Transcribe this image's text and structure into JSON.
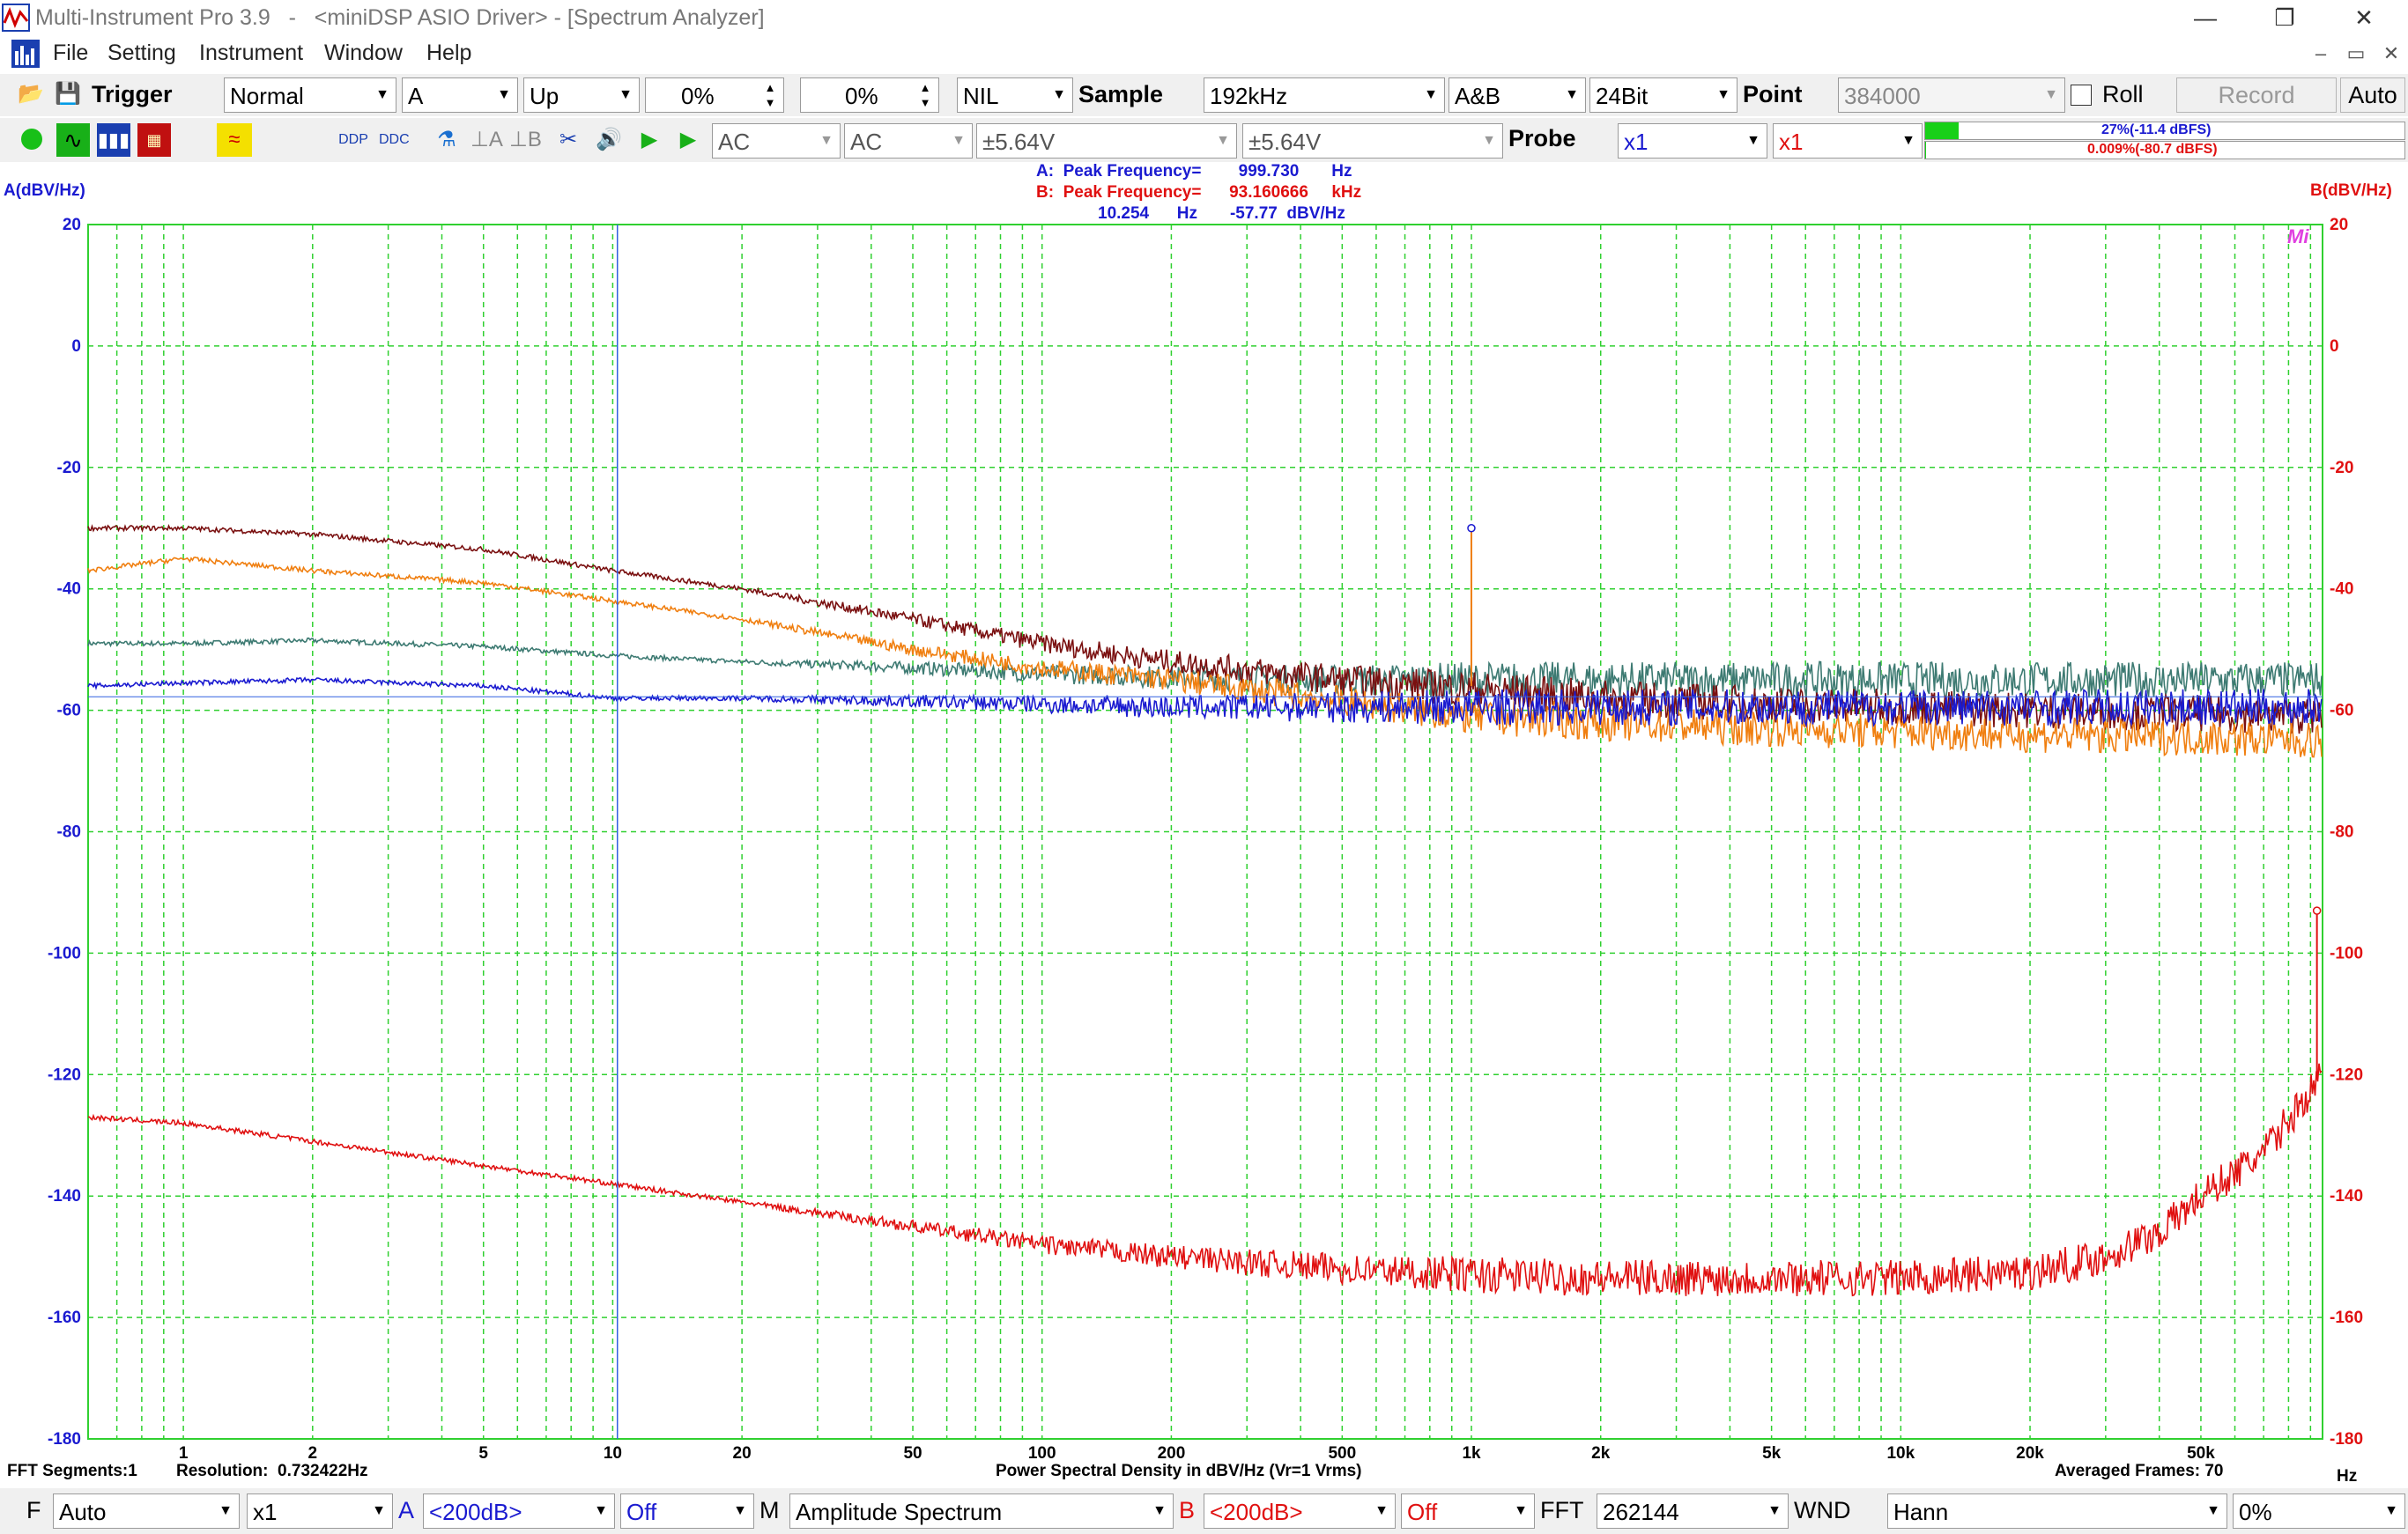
{
  "window": {
    "title": "Multi-Instrument Pro 3.9   -   <miniDSP ASIO Driver> - [Spectrum Analyzer]",
    "controls": [
      "—",
      "❐",
      "✕"
    ]
  },
  "menu": {
    "items": [
      "File",
      "Setting",
      "Instrument",
      "Window",
      "Help"
    ],
    "mdi_controls": [
      "–",
      "▭",
      "✕"
    ]
  },
  "toolbar1": {
    "trigger_label": "Trigger",
    "trigger_mode": "Normal",
    "trigger_source": "A",
    "trigger_edge": "Up",
    "trigger_level": "0%",
    "trigger_delay": "0%",
    "nil": "NIL",
    "sample_label": "Sample",
    "sample_rate": "192kHz",
    "channels": "A&B",
    "bits": "24Bit",
    "point_label": "Point",
    "points": "384000",
    "roll_label": "Roll",
    "record_label": "Record",
    "auto_label": "Auto"
  },
  "toolbar2": {
    "coupling_a": "AC",
    "coupling_b": "AC",
    "range_a": "±5.64V",
    "range_b": "±5.64V",
    "probe_label": "Probe",
    "probe_a": "x1",
    "probe_b": "x1",
    "level_a": "27%(-11.4 dBFS)",
    "level_b": "0.009%(-80.7 dBFS)",
    "level_a_fraction": 0.27,
    "level_b_fraction": 0.0001,
    "color_a": "#1a1ad0",
    "color_b": "#e01010"
  },
  "plot": {
    "left_unit": "A(dBV/Hz)",
    "right_unit": "B(dBV/Hz)",
    "peak_a": "A:  Peak Frequency=        999.730       Hz",
    "peak_b": "B:  Peak Frequency=      93.160666     kHz",
    "cursor": "10.254      Hz       -57.77  dBV/Hz",
    "logo": "Mi",
    "x_unit": "Hz",
    "x_title": "Power Spectral Density in dBV/Hz (Vr=1 Vrms)",
    "fft_segments": "FFT Segments:1",
    "resolution": "Resolution:  0.732422Hz",
    "averaged": "Averaged Frames: 70"
  },
  "chart_data": {
    "type": "line",
    "xscale": "log",
    "xlim": [
      0.6,
      96000
    ],
    "ylim": [
      -180,
      20
    ],
    "yticks": [
      20,
      0,
      -20,
      -40,
      -60,
      -80,
      -100,
      -120,
      -140,
      -160,
      -180
    ],
    "xticks": [
      1,
      2,
      5,
      10,
      20,
      50,
      100,
      200,
      500,
      1000,
      2000,
      5000,
      10000,
      20000,
      50000
    ],
    "xticklabels": [
      "1",
      "2",
      "5",
      "10",
      "20",
      "50",
      "100",
      "200",
      "500",
      "1k",
      "2k",
      "5k",
      "10k",
      "20k",
      "50k"
    ],
    "grid": true,
    "cursor_x": 10.254,
    "series": [
      {
        "color": "#7a1010",
        "x": [
          0.6,
          1,
          2,
          5,
          10,
          20,
          50,
          100,
          200,
          500,
          1000,
          2000,
          5000,
          10000,
          20000,
          50000,
          96000
        ],
        "y": [
          -30,
          -30,
          -31,
          -33.5,
          -37,
          -40,
          -45,
          -49,
          -52,
          -55,
          -56.5,
          -58,
          -59,
          -59.5,
          -60,
          -60.5,
          -61
        ]
      },
      {
        "color": "#f07f10",
        "x": [
          0.6,
          1,
          2,
          5,
          10,
          20,
          50,
          100,
          200,
          500,
          1000,
          2000,
          5000,
          10000,
          20000,
          50000,
          96000
        ],
        "y": [
          -37,
          -35,
          -37,
          -39,
          -42,
          -45,
          -50,
          -53,
          -55,
          -58.5,
          -61,
          -62,
          -63,
          -63.5,
          -64,
          -64.5,
          -65
        ]
      },
      {
        "color": "#3d7a72",
        "x": [
          0.6,
          1,
          2,
          5,
          10,
          20,
          50,
          100,
          200,
          500,
          1000,
          2000,
          5000,
          10000,
          20000,
          50000,
          96000
        ],
        "y": [
          -49,
          -49,
          -48.5,
          -49.5,
          -51,
          -52,
          -53,
          -54,
          -54.5,
          -55,
          -55,
          -55,
          -55,
          -55,
          -55,
          -55,
          -55
        ]
      },
      {
        "color": "#1a1ad0",
        "x": [
          0.6,
          1,
          2,
          5,
          10,
          20,
          50,
          100,
          200,
          500,
          1000,
          2000,
          5000,
          10000,
          20000,
          50000,
          96000
        ],
        "y": [
          -56,
          -55.5,
          -55,
          -56,
          -58,
          -58,
          -58.5,
          -59,
          -59.5,
          -59.5,
          -59.5,
          -59.5,
          -59.5,
          -59.5,
          -59.5,
          -59.5,
          -59.5
        ]
      },
      {
        "color": "#e01010",
        "x": [
          0.6,
          1,
          2,
          5,
          10,
          20,
          50,
          100,
          200,
          500,
          1000,
          2000,
          5000,
          10000,
          20000,
          30000,
          40000,
          50000,
          70000,
          96000
        ],
        "y": [
          -127,
          -128,
          -131,
          -135,
          -138,
          -141,
          -145,
          -148,
          -150,
          -152,
          -153,
          -153.5,
          -153.5,
          -153.5,
          -152.5,
          -150,
          -146,
          -140,
          -133,
          -120
        ]
      }
    ],
    "peaks": [
      {
        "color": "#f07f10",
        "x": 999.73,
        "y": -30,
        "base": -56
      },
      {
        "color": "#e01010",
        "x": 93160.666,
        "y": -93,
        "base": -120
      }
    ]
  },
  "bottom": {
    "f_label": "F",
    "f_mode": "Auto",
    "f_mult": "x1",
    "a_label": "A",
    "a_range": "<200dB>",
    "a_off": "Off",
    "m_label": "M",
    "mode": "Amplitude Spectrum",
    "b_label": "B",
    "b_range": "<200dB>",
    "b_off": "Off",
    "fft_label": "FFT",
    "fft_size": "262144",
    "wnd_label": "WND",
    "window": "Hann",
    "overlap": "0%"
  }
}
